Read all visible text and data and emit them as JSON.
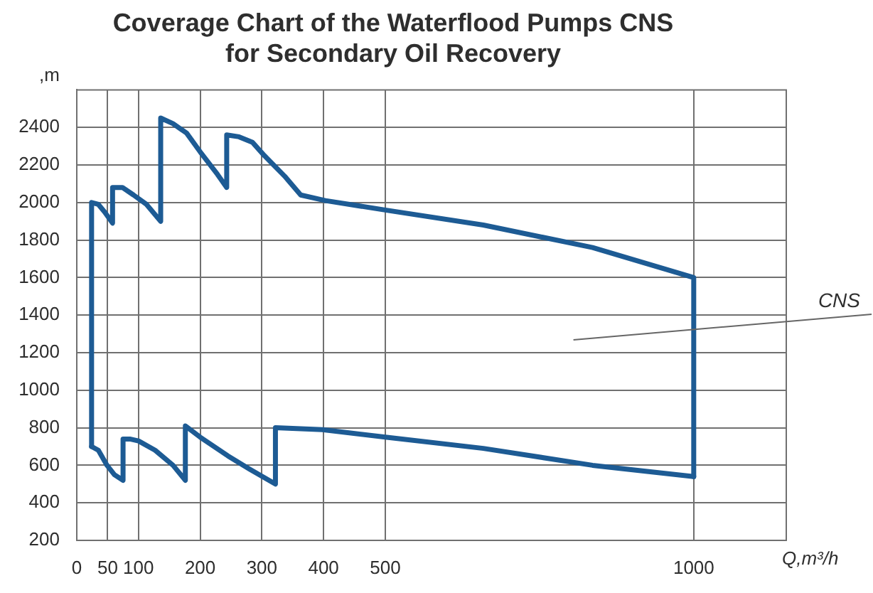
{
  "chart_data": {
    "type": "line",
    "title": "Coverage Chart of the Waterflood Pumps CNS for Secondary Oil Recovery",
    "xlabel": "Q,m³/h",
    "ylabel": ",m",
    "xlim": [
      0,
      1150
    ],
    "xticks": [
      0,
      50,
      100,
      200,
      300,
      400,
      500,
      1000
    ],
    "ylim": [
      200,
      2600
    ],
    "yticks": [
      200,
      400,
      600,
      800,
      1000,
      1200,
      1400,
      1600,
      1800,
      2000,
      2200,
      2400
    ],
    "grid": true,
    "marker": "none",
    "series": [
      {
        "name": "CNS",
        "color": "#1d5b94",
        "x": [
          24,
          24,
          35,
          45,
          58,
          58,
          74,
          92,
          113,
          136,
          136,
          156,
          178,
          200,
          228,
          243,
          243,
          263,
          285,
          304,
          337,
          363,
          403,
          500,
          659,
          836,
          1000,
          1000
        ],
        "values": [
          700,
          2000,
          1990,
          1950,
          1890,
          2080,
          2080,
          2040,
          1990,
          1900,
          2450,
          2420,
          2370,
          2270,
          2150,
          2080,
          2360,
          2350,
          2320,
          2250,
          2140,
          2040,
          2010,
          1960,
          1880,
          1760,
          1600,
          540
        ]
      },
      {
        "color": "#1d5b94",
        "x": [
          24,
          35,
          49,
          61,
          75,
          75,
          86,
          100,
          127,
          156,
          176,
          176,
          200,
          245,
          280,
          322,
          322,
          398,
          500,
          659,
          836,
          1000
        ],
        "values": [
          700,
          680,
          600,
          550,
          520,
          740,
          740,
          730,
          680,
          600,
          520,
          810,
          750,
          650,
          580,
          500,
          800,
          790,
          750,
          690,
          600,
          540
        ]
      }
    ]
  }
}
